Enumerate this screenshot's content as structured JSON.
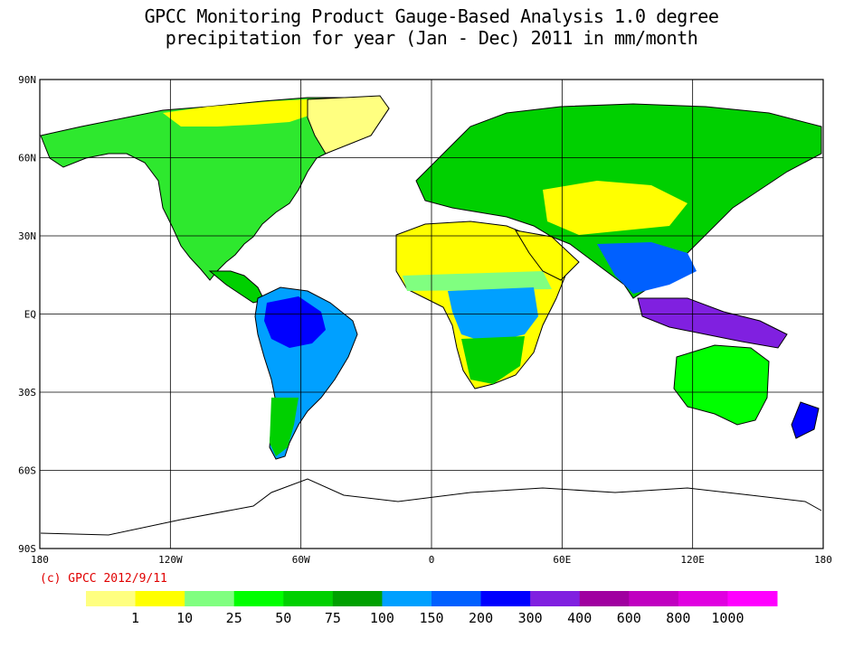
{
  "title": {
    "line1": "GPCC Monitoring Product Gauge-Based Analysis 1.0 degree",
    "line2": "precipitation for year (Jan - Dec) 2011 in mm/month"
  },
  "copyright": "(c) GPCC 2012/9/11",
  "axes": {
    "lat_ticks": [
      "90N",
      "60N",
      "30N",
      "EQ",
      "30S",
      "60S",
      "90S"
    ],
    "lon_ticks": [
      "180",
      "120W",
      "60W",
      "0",
      "60E",
      "120E",
      "180"
    ]
  },
  "colorbar": {
    "colors": [
      "#ffff80",
      "#ffff00",
      "#80ff80",
      "#00ff00",
      "#00d000",
      "#00a000",
      "#00a0ff",
      "#0060ff",
      "#0000ff",
      "#8020e0",
      "#a000a0",
      "#c000c0",
      "#e000e0",
      "#ff00ff"
    ],
    "labels": [
      "1",
      "10",
      "25",
      "50",
      "75",
      "100",
      "150",
      "200",
      "300",
      "400",
      "600",
      "800",
      "1000"
    ]
  },
  "colors": {
    "ocean": "#ffffff",
    "grid": "#000000",
    "copyright_text": "#e00000"
  }
}
